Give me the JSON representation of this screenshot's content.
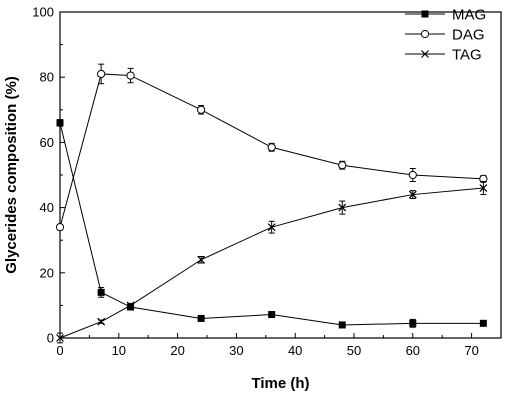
{
  "chart_data": {
    "type": "line",
    "xlabel": "Time (h)",
    "ylabel": "Glycerides composition (%)",
    "xlim": [
      0,
      75
    ],
    "ylim": [
      0,
      100
    ],
    "x_ticks": [
      0,
      10,
      20,
      30,
      40,
      50,
      60,
      70
    ],
    "y_ticks": [
      0,
      20,
      40,
      60,
      80,
      100
    ],
    "grid": false,
    "legend_position": "top-right",
    "x": [
      0,
      7,
      12,
      24,
      36,
      48,
      60,
      72
    ],
    "series": [
      {
        "name": "MAG",
        "marker": "filled-square",
        "values": [
          66,
          14,
          9.5,
          6,
          7.2,
          4,
          4.5,
          4.5
        ],
        "errors": [
          1,
          1.5,
          0.8,
          0.8,
          0.5,
          0.8,
          1.2,
          0.6
        ]
      },
      {
        "name": "DAG",
        "marker": "open-circle",
        "values": [
          34,
          81,
          80.5,
          70,
          58.5,
          53,
          50,
          48.8
        ],
        "errors": [
          0.8,
          3,
          2.2,
          1.3,
          1.2,
          1.2,
          2,
          1
        ]
      },
      {
        "name": "TAG",
        "marker": "cross",
        "values": [
          0,
          5,
          10,
          24,
          34,
          40,
          44,
          46
        ],
        "errors": [
          1.5,
          0.5,
          0.6,
          1,
          1.8,
          2,
          1.2,
          2
        ]
      }
    ]
  }
}
